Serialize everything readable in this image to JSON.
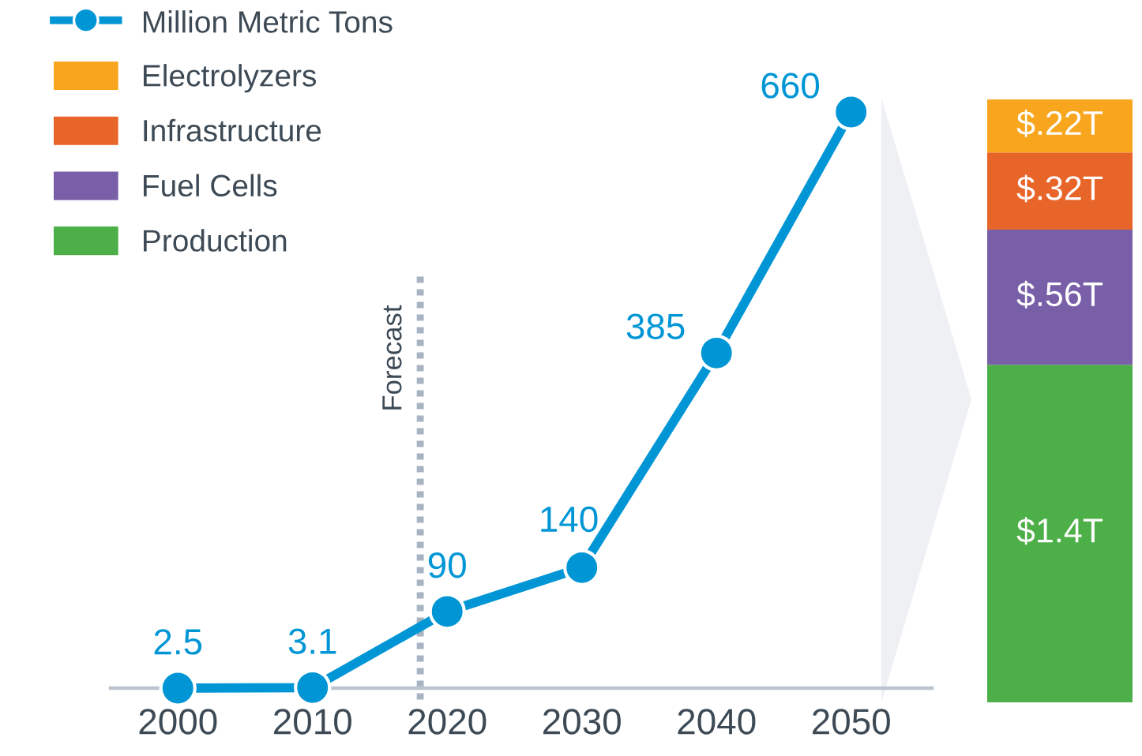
{
  "chart_data": [
    {
      "type": "line",
      "x": [
        2000,
        2010,
        2020,
        2030,
        2040,
        2050
      ],
      "xlim": [
        1995,
        2056
      ],
      "xticks": [
        2000,
        2010,
        2020,
        2030,
        2040,
        2050
      ],
      "tick_labels": "x",
      "marker": "circle",
      "line_style": "solid",
      "data_labels": true,
      "legend": "top left",
      "series": [
        {
          "name": "Million Metric Tons",
          "color": "#0096d6",
          "values": [
            2.5,
            3.1,
            90,
            140,
            385,
            660
          ]
        }
      ],
      "ref_lines": [
        {
          "axis": "x",
          "value": 2018,
          "label": "Forecast",
          "color": "#a9b4c2",
          "line_style": "dotted"
        }
      ]
    },
    {
      "type": "bar",
      "stacked": true,
      "categories": [
        null
      ],
      "ylim": [
        0,
        2.5
      ],
      "tick_labels": false,
      "legend": "top left",
      "series": [
        {
          "name": "Production",
          "color": "#4caf47",
          "values": [
            1.4
          ],
          "value_labels": [
            "$1.4T"
          ]
        },
        {
          "name": "Fuel Cells",
          "color": "#785fa8",
          "values": [
            0.56
          ],
          "value_labels": [
            "$.56T"
          ]
        },
        {
          "name": "Infrastructure",
          "color": "#e8652a",
          "values": [
            0.32
          ],
          "value_labels": [
            "$.32T"
          ]
        },
        {
          "name": "Electrolyzers",
          "color": "#f9a61f",
          "values": [
            0.22
          ],
          "value_labels": [
            "$.22T"
          ]
        }
      ]
    }
  ]
}
